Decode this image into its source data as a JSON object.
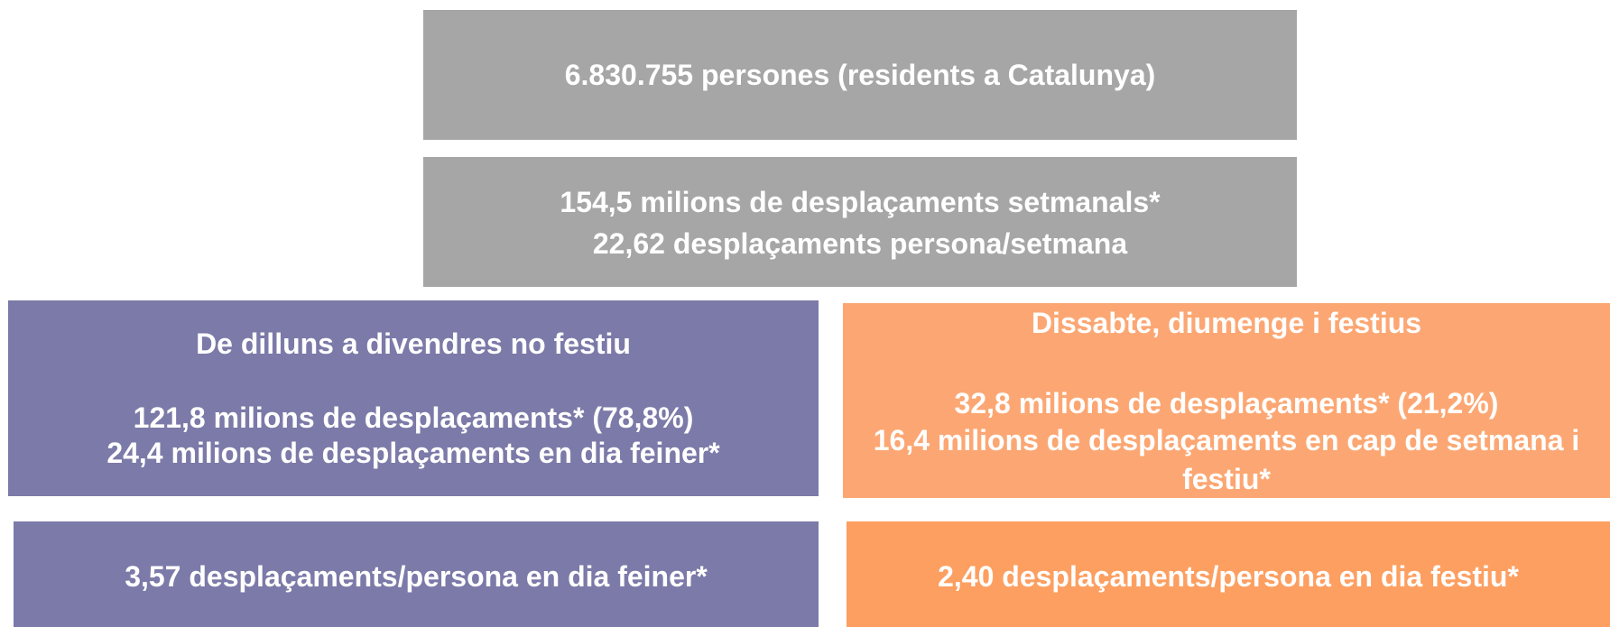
{
  "boxes": [
    {
      "lines": [
        "6.830.755 persones (residents a Catalunya)"
      ]
    },
    {
      "lines": [
        "154,5 milions de desplaçaments setmanals*",
        "22,62 desplaçaments persona/setmana"
      ]
    },
    {
      "heading": "De dilluns a divendres no festiu",
      "lines": [
        "121,8 milions de desplaçaments* (78,8%)",
        "24,4 milions de desplaçaments en dia feiner*"
      ]
    },
    {
      "heading": "Dissabte, diumenge i festius",
      "lines": [
        "32,8 milions de desplaçaments* (21,2%)",
        "16,4 milions de desplaçaments en cap de setmana i festiu*"
      ]
    },
    {
      "lines": [
        "3,57 desplaçaments/persona en dia feiner*"
      ]
    },
    {
      "lines": [
        "2,40 desplaçaments/persona en dia festiu*"
      ]
    }
  ]
}
